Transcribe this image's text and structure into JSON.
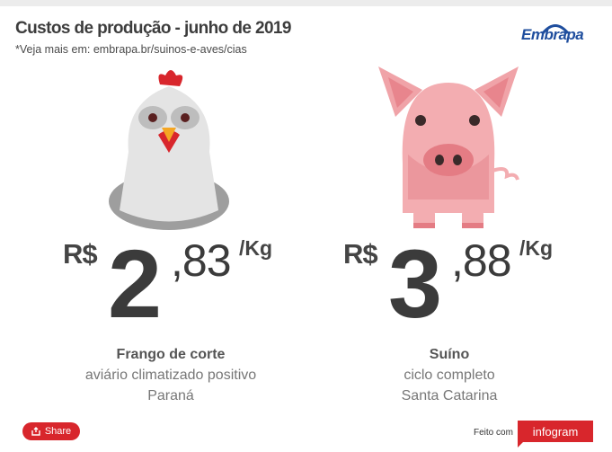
{
  "header": {
    "title": "Custos de produção - junho de 2019",
    "subtitle": "*Veja mais em: embrapa.br/suinos-e-aves/cias"
  },
  "logo": {
    "text": "Embrapa",
    "color": "#1f4e9e"
  },
  "items": [
    {
      "animal": "chicken",
      "currency": "R$",
      "integer": "2",
      "decimal": ",83",
      "unit": "/Kg",
      "name": "Frango de corte",
      "line1": "aviário climatizado positivo",
      "line2": "Paraná"
    },
    {
      "animal": "pig",
      "currency": "R$",
      "integer": "3",
      "decimal": ",88",
      "unit": "/Kg",
      "name": "Suíno",
      "line1": "ciclo completo",
      "line2": "Santa Catarina"
    }
  ],
  "footer": {
    "share_label": "Share",
    "feito_label": "Feito com",
    "infogram_label": "infogram"
  },
  "colors": {
    "accent": "#d8262c",
    "text": "#3b3b3b",
    "chicken": "#e6e6e6",
    "pig": "#f0a3a8"
  }
}
